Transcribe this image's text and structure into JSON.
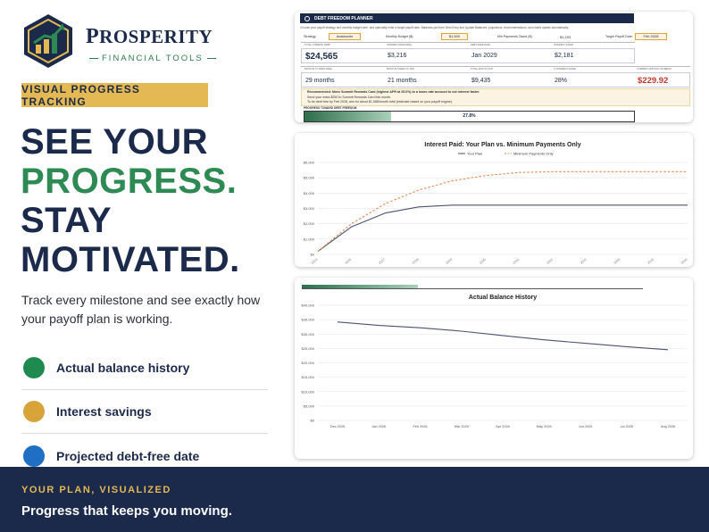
{
  "brand": {
    "name_first": "P",
    "name_rest": "ROSPERITY",
    "tagline": "FINANCIAL TOOLS",
    "colors": {
      "navy": "#1b2a4a",
      "green": "#2d8a53",
      "gold": "#e4b852",
      "blue": "#1f6fc4"
    }
  },
  "badge": "VISUAL PROGRESS TRACKING",
  "headline": {
    "line1": "SEE YOUR",
    "line2": "PROGRESS.",
    "line3": "STAY",
    "line4": "MOTIVATED."
  },
  "subtext": "Track every milestone and see exactly how your payoff plan is working.",
  "features": [
    {
      "label": "Actual balance history",
      "color": "#1f8a4f",
      "icon": "green-dot"
    },
    {
      "label": "Interest savings",
      "color": "#d8a43a",
      "icon": "gold-dot"
    },
    {
      "label": "Projected debt-free date",
      "color": "#1f6fc4",
      "icon": "blue-dot"
    }
  ],
  "footer": {
    "kicker": "YOUR PLAN, VISUALIZED",
    "line": "Progress that keeps you moving."
  },
  "planner": {
    "title": "DEBT FREEDOM PLANNER",
    "description": "Choose your payoff strategy and monthly budget here, and optionally enter a target payoff date. Balances pull from Debt Entry and Update Balances; projections, recommendations, and charts update automatically.",
    "strategy_label": "Strategy:",
    "strategy_value": "Avalanche",
    "budget_label": "Monthly Budget ($):",
    "budget_value": "$1,500",
    "min_label": "Min Payments Owed ($):",
    "min_value": "$1,293",
    "target_label": "Target Payoff Date:",
    "target_value": "Feb 2028",
    "metrics_row1_labels": [
      "TOTAL CURRENT DEBT",
      "INTEREST REMAINING",
      "DEBT-FREE DATE",
      "INTEREST SAVED"
    ],
    "metrics_row1_values": [
      "$24,565",
      "$3,216",
      "Jan 2029",
      "$2,181"
    ],
    "metrics_row2_labels": [
      "MONTHS TO DEBT FREE",
      "MONTHS SAVED VS. MIN",
      "TOTAL PAID SO FAR",
      "% INTEREST SAVED",
      "CURRENT MONTHLY INTEREST"
    ],
    "metrics_row2_values": [
      "29 months",
      "21 months",
      "$9,435",
      "28%",
      "$229.92"
    ],
    "recommendation": "Recommended: Move Summit Rewards Card (highest APR at 25.0%) to a lower-rate account to cut interest faster.",
    "rec_line2": "Send your extra $250 to Summit Rewards Card this month.",
    "rec_line3": "To be debt free by Feb 2028, aim for about $1,588/month total (estimate based on your payoff engine).",
    "progress_label": "PROGRESS TOWARD DEBT FREEDOM",
    "progress_text": "27.8%",
    "progress_value": 0.278
  },
  "chart_data": [
    {
      "type": "line",
      "title": "Interest Paid: Your Plan vs. Minimum Payments Only",
      "legend_placement": "top",
      "xlabel": "",
      "ylabel": "",
      "x": [
        "2025",
        "2026",
        "2027",
        "2028",
        "2029",
        "2030",
        "2031",
        "2032",
        "2033",
        "2034",
        "2035",
        "2036"
      ],
      "ylim": [
        0,
        6000
      ],
      "yticks": [
        "$0",
        "$1,000",
        "$2,000",
        "$3,000",
        "$4,000",
        "$5,000",
        "$6,000"
      ],
      "series": [
        {
          "name": "Your Plan",
          "color": "#4a5270",
          "style": "solid",
          "values": [
            200,
            1800,
            2700,
            3100,
            3216,
            3216,
            3216,
            3216,
            3216,
            3216,
            3216,
            3216
          ]
        },
        {
          "name": "Minimum Payments Only",
          "color": "#e38b4f",
          "style": "dashed",
          "values": [
            200,
            2000,
            3300,
            4200,
            4800,
            5150,
            5350,
            5400,
            5400,
            5400,
            5400,
            5400
          ]
        }
      ],
      "grid": true
    },
    {
      "type": "line",
      "title": "Actual Balance History",
      "xlabel": "",
      "ylabel": "",
      "categories": [
        "Dec 2025",
        "Jan 2026",
        "Feb 2026",
        "Mar 2026",
        "Apr 2026",
        "May 2026",
        "Jun 2026",
        "Jul 2026",
        "Aug 2026"
      ],
      "ylim": [
        0,
        40000
      ],
      "yticks": [
        "$0",
        "$5,000",
        "$10,000",
        "$15,000",
        "$20,000",
        "$25,000",
        "$30,000",
        "$35,000",
        "$40,000"
      ],
      "series": [
        {
          "name": "",
          "color": "#4a5270",
          "values": [
            34200,
            33000,
            32200,
            31000,
            29500,
            28000,
            26800,
            25600,
            24565
          ]
        }
      ],
      "grid": true
    }
  ]
}
